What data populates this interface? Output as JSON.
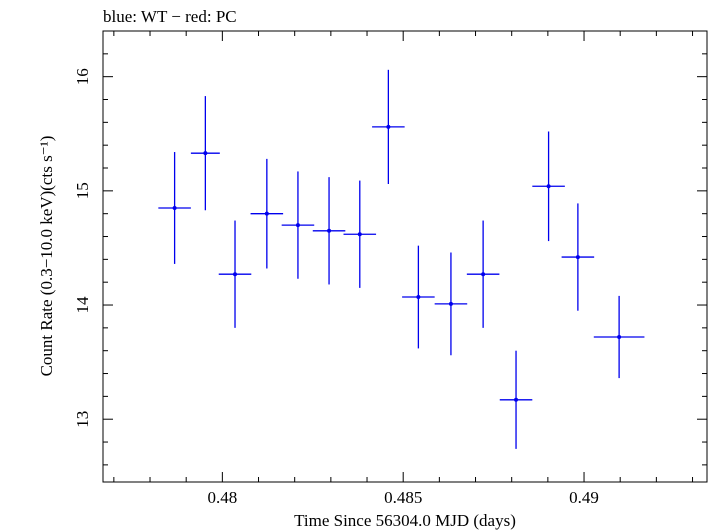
{
  "chart_data": {
    "type": "scatter",
    "title": "blue: WT − red: PC",
    "xlabel": "Time Since 56304.0 MJD (days)",
    "ylabel": "Count Rate (0.3−10.0 keV)(cts s⁻¹)",
    "xlim": [
      0.4767,
      0.4934
    ],
    "ylim": [
      12.45,
      16.4
    ],
    "x_ticks": [
      "0.48",
      "0.485",
      "0.49"
    ],
    "y_ticks": [
      "13",
      "14",
      "15",
      "16"
    ],
    "grid": false,
    "series": [
      {
        "color": "#0000ee",
        "points": [
          {
            "x": 0.47868,
            "xerr": 0.00045,
            "y": 14.85,
            "yerr": 0.49
          },
          {
            "x": 0.47953,
            "xerr": 0.0004,
            "y": 15.33,
            "yerr": 0.5
          },
          {
            "x": 0.48035,
            "xerr": 0.00045,
            "y": 14.27,
            "yerr": 0.47
          },
          {
            "x": 0.48123,
            "xerr": 0.00045,
            "y": 14.8,
            "yerr": 0.48
          },
          {
            "x": 0.48209,
            "xerr": 0.00045,
            "y": 14.7,
            "yerr": 0.47
          },
          {
            "x": 0.48295,
            "xerr": 0.00045,
            "y": 14.65,
            "yerr": 0.47
          },
          {
            "x": 0.4838,
            "xerr": 0.00045,
            "y": 14.62,
            "yerr": 0.47
          },
          {
            "x": 0.48459,
            "xerr": 0.00045,
            "y": 15.56,
            "yerr": 0.5
          },
          {
            "x": 0.48542,
            "xerr": 0.00045,
            "y": 14.07,
            "yerr": 0.45
          },
          {
            "x": 0.48632,
            "xerr": 0.00045,
            "y": 14.01,
            "yerr": 0.45
          },
          {
            "x": 0.48721,
            "xerr": 0.00045,
            "y": 14.27,
            "yerr": 0.47
          },
          {
            "x": 0.48812,
            "xerr": 0.00045,
            "y": 13.17,
            "yerr": 0.43
          },
          {
            "x": 0.48902,
            "xerr": 0.00045,
            "y": 15.04,
            "yerr": 0.48
          },
          {
            "x": 0.48983,
            "xerr": 0.00045,
            "y": 14.42,
            "yerr": 0.47
          },
          {
            "x": 0.49097,
            "xerr": 0.0007,
            "y": 13.72,
            "yerr": 0.36
          }
        ]
      }
    ]
  }
}
